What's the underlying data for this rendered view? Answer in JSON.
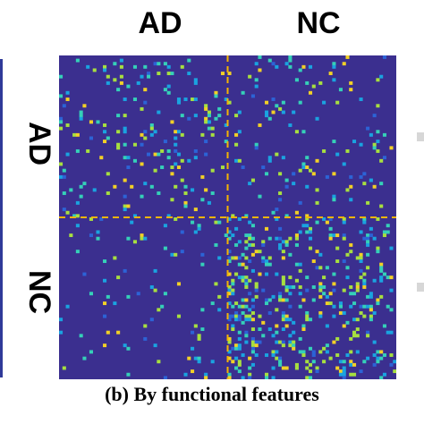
{
  "column_labels": [
    "AD",
    "NC"
  ],
  "row_labels": [
    "AD",
    "NC"
  ],
  "caption": "(b) By functional features",
  "colors": {
    "background_cell": "#3b2f8f",
    "divider": "#f5b400",
    "colormap": [
      "#3b2f8f",
      "#2c63d6",
      "#1aa3e0",
      "#35d0b8",
      "#a7df40",
      "#f2d027"
    ]
  },
  "chart_data": {
    "type": "heatmap",
    "title": "",
    "xlabel": "",
    "ylabel": "",
    "x_groups": [
      "AD",
      "NC"
    ],
    "y_groups": [
      "AD",
      "NC"
    ],
    "grid": false,
    "divider_lines": "dashed, at AD/NC group boundary on both axes",
    "value_range": [
      0,
      1
    ],
    "matrix_size": [
      100,
      100
    ],
    "group_split_index": 50,
    "block_mean_intensity": {
      "AD-AD": 0.08,
      "AD-NC": 0.06,
      "NC-AD": 0.04,
      "NC-NC": 0.14
    },
    "notable_features": "Dense bright column band near the start of the NC columns within the NC rows"
  }
}
